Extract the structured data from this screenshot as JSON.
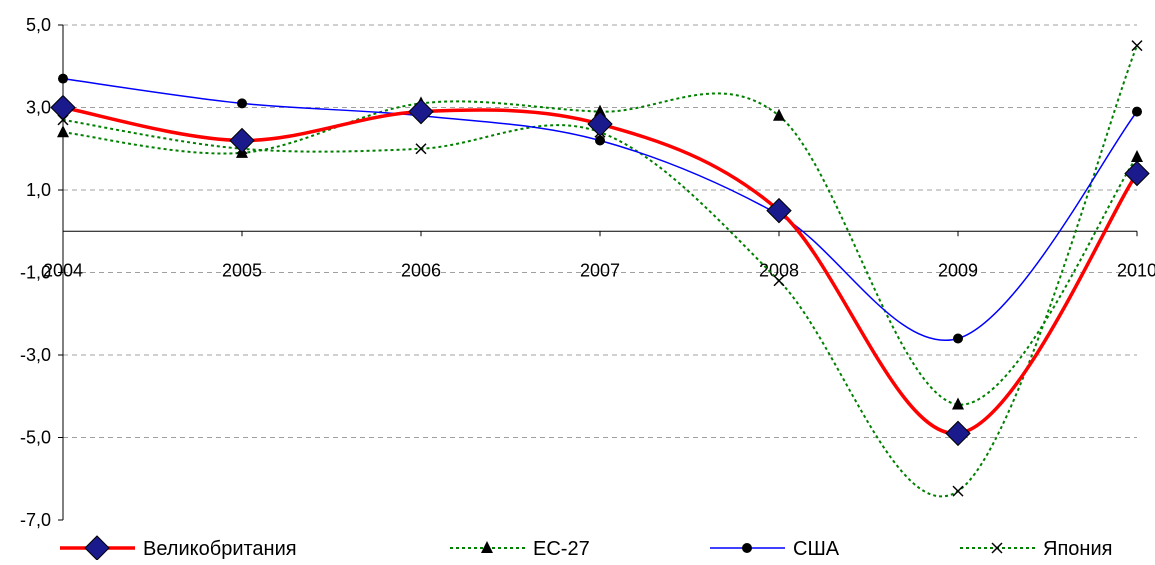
{
  "chart_data": {
    "type": "line",
    "title": "",
    "xlabel": "",
    "ylabel": "",
    "x": [
      "2004",
      "2005",
      "2006",
      "2007",
      "2008",
      "2009",
      "2010"
    ],
    "y_ticks": [
      "5,0",
      "3,0",
      "1,0",
      "-1,0",
      "-3,0",
      "-5,0",
      "-7,0"
    ],
    "y_tick_values": [
      5,
      3,
      1,
      -1,
      -3,
      -5,
      -7
    ],
    "ylim": [
      -7,
      5
    ],
    "grid": "horizontal dashed",
    "legend_position": "bottom",
    "series": [
      {
        "name": "Великобритания",
        "values": [
          3.0,
          2.2,
          2.9,
          2.6,
          0.5,
          -4.9,
          1.4
        ],
        "color": "#ff0000",
        "style": "solid",
        "marker": "diamond",
        "marker_color": "#1a1a8c"
      },
      {
        "name": "ЕС-27",
        "values": [
          2.4,
          1.9,
          3.1,
          2.9,
          2.8,
          -4.2,
          1.8
        ],
        "color": "#008000",
        "style": "dotted",
        "marker": "triangle",
        "marker_color": "#000000"
      },
      {
        "name": "США",
        "values": [
          3.7,
          3.1,
          2.8,
          2.2,
          0.4,
          -2.6,
          2.9
        ],
        "color": "#0000ff",
        "style": "solid",
        "marker": "circle",
        "marker_color": "#000000"
      },
      {
        "name": "Япония",
        "values": [
          2.7,
          2.0,
          2.0,
          2.4,
          -1.2,
          -6.3,
          4.5
        ],
        "color": "#008000",
        "style": "dotted",
        "marker": "cross",
        "marker_color": "#000000"
      }
    ]
  }
}
